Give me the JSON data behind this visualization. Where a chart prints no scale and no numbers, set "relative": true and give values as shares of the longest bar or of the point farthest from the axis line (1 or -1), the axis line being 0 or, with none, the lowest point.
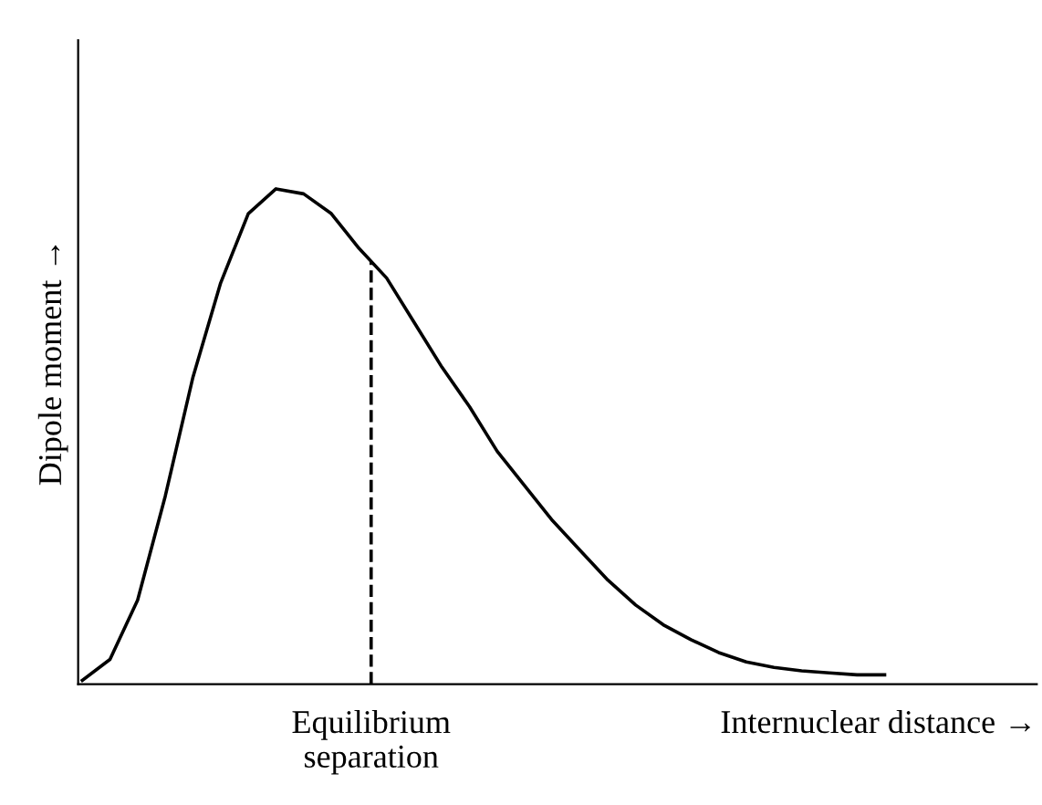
{
  "chart_data": {
    "type": "line",
    "relative": true,
    "xlabel": "Internuclear distance →",
    "ylabel": "Dipole moment →",
    "categories": [
      null,
      null,
      null,
      null,
      null,
      null,
      null,
      null,
      null,
      null,
      null,
      null,
      null,
      null,
      null,
      null,
      null,
      null,
      null,
      null,
      null,
      null,
      null,
      null,
      null,
      null,
      null,
      null,
      null,
      null
    ],
    "series": [
      {
        "color": "#000000",
        "values": [
          0.008,
          0.05,
          0.17,
          0.38,
          0.62,
          0.81,
          0.95,
          1.0,
          0.99,
          0.95,
          0.88,
          0.82,
          0.73,
          0.64,
          0.56,
          0.47,
          0.4,
          0.33,
          0.27,
          0.21,
          0.16,
          0.12,
          0.09,
          0.064,
          0.045,
          0.034,
          0.027,
          0.023,
          0.019,
          0.019
        ]
      }
    ],
    "annotations": [
      "Equilibrium\nseparation"
    ],
    "marker": "none",
    "line_style": "solid"
  }
}
